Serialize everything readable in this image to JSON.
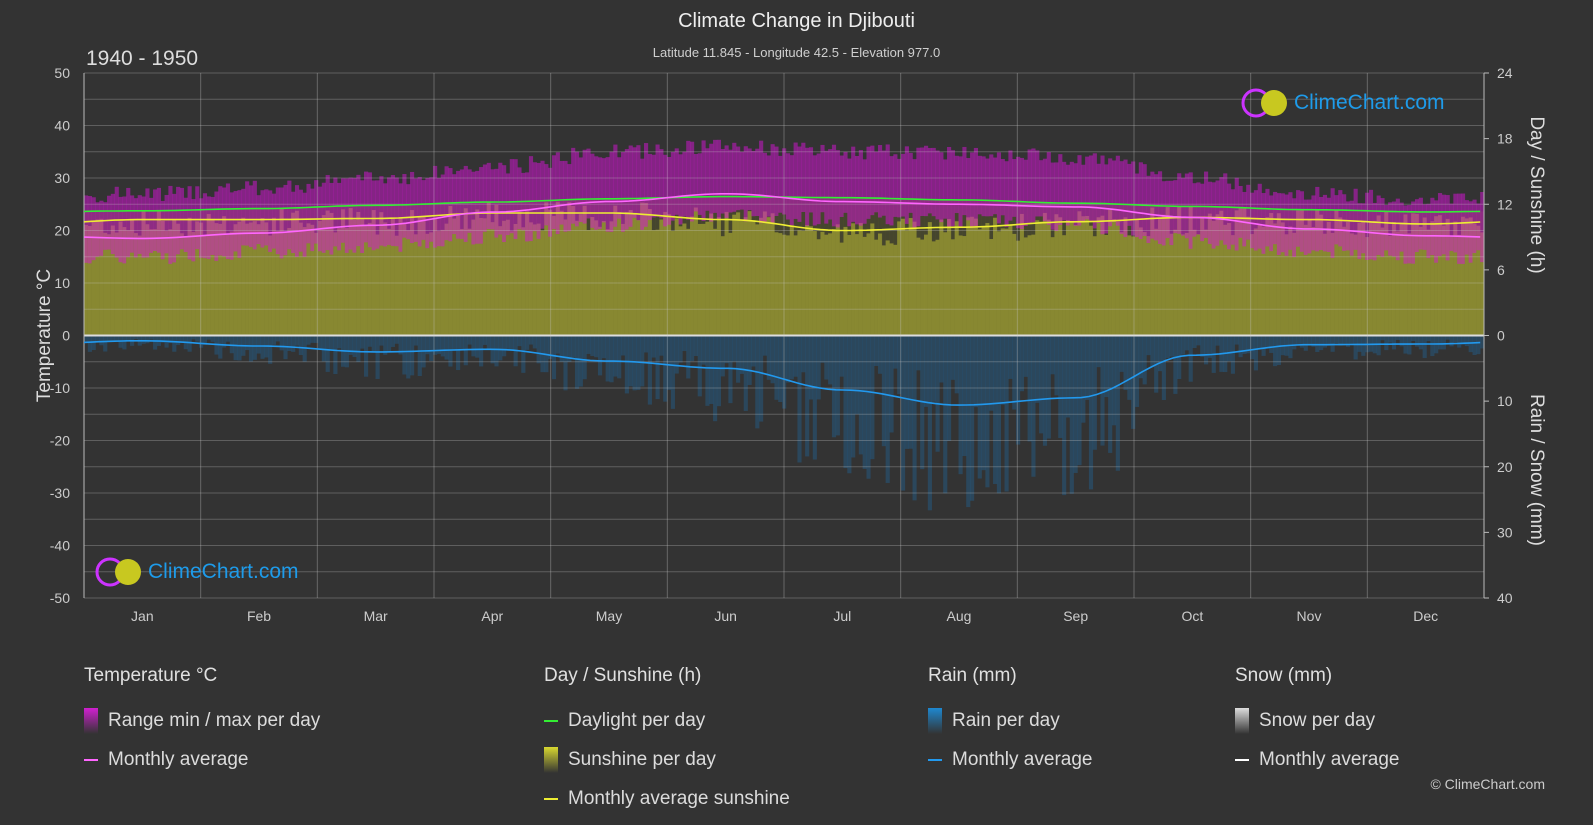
{
  "header": {
    "title": "Climate Change in Djibouti",
    "subtitle": "Latitude 11.845 - Longitude 42.5 - Elevation 977.0",
    "period": "1940 - 1950"
  },
  "logo_text": "ClimeChart.com",
  "copyright": "© ClimeChart.com",
  "chart_data": {
    "type": "area",
    "categories": [
      "Jan",
      "Feb",
      "Mar",
      "Apr",
      "May",
      "Jun",
      "Jul",
      "Aug",
      "Sep",
      "Oct",
      "Nov",
      "Dec"
    ],
    "left_axis": {
      "label": "Temperature °C",
      "range": [
        -50,
        50
      ],
      "ticks": [
        50,
        40,
        30,
        20,
        10,
        0,
        -10,
        -20,
        -30,
        -40,
        -50
      ]
    },
    "right_axis_top": {
      "label": "Day / Sunshine (h)",
      "range": [
        0,
        24
      ],
      "ticks": [
        24,
        18,
        12,
        6,
        0
      ]
    },
    "right_axis_bottom": {
      "label": "Rain / Snow (mm)",
      "range": [
        0,
        40
      ],
      "ticks": [
        0,
        10,
        20,
        30,
        40
      ]
    },
    "grid": true,
    "series": [
      {
        "name": "Monthly average",
        "group": "Temperature °C",
        "color": "#ff66ff",
        "values": [
          18.5,
          19.5,
          21.0,
          23.5,
          25.5,
          27.0,
          25.5,
          25.0,
          24.5,
          22.5,
          20.3,
          19.0
        ]
      },
      {
        "name": "Range max per day",
        "group": "Temperature °C",
        "color": "#c000c0",
        "values": [
          27,
          28,
          30,
          32,
          35,
          36,
          35,
          35,
          34,
          30,
          27,
          26
        ]
      },
      {
        "name": "Range min per day",
        "group": "Temperature °C",
        "color": "#c000c0",
        "values": [
          15,
          16,
          17,
          19,
          21,
          23,
          22,
          22,
          21,
          18,
          16,
          15
        ]
      },
      {
        "name": "Daylight per day",
        "group": "Day / Sunshine (h)",
        "color": "#33ee33",
        "values": [
          11.4,
          11.6,
          11.9,
          12.2,
          12.5,
          12.7,
          12.6,
          12.4,
          12.1,
          11.8,
          11.5,
          11.3
        ]
      },
      {
        "name": "Monthly average sunshine",
        "group": "Day / Sunshine (h)",
        "color": "#eeee33",
        "values": [
          10.6,
          10.6,
          10.7,
          11.2,
          11.2,
          10.6,
          9.6,
          9.9,
          10.4,
          10.8,
          10.6,
          10.2
        ]
      },
      {
        "name": "Monthly average",
        "group": "Rain (mm)",
        "color": "#2299ee",
        "values": [
          0.8,
          1.6,
          2.5,
          2.1,
          3.9,
          5.0,
          8.3,
          10.6,
          9.5,
          3.0,
          1.4,
          1.3
        ]
      },
      {
        "name": "Monthly average",
        "group": "Snow (mm)",
        "color": "#ffffff",
        "values": [
          0,
          0,
          0,
          0,
          0,
          0,
          0,
          0,
          0,
          0,
          0,
          0
        ]
      }
    ]
  },
  "legend": [
    {
      "heading": "Temperature °C",
      "items": [
        {
          "label": "Range min / max per day",
          "kind": "box",
          "color": "#d020d0"
        },
        {
          "label": "Monthly average",
          "kind": "line",
          "color": "#ff66ff"
        }
      ]
    },
    {
      "heading": "Day / Sunshine (h)",
      "items": [
        {
          "label": "Daylight per day",
          "kind": "line",
          "color": "#33ee33"
        },
        {
          "label": "Sunshine per day",
          "kind": "box",
          "color": "#d8d830"
        },
        {
          "label": "Monthly average sunshine",
          "kind": "line",
          "color": "#eeee33"
        }
      ]
    },
    {
      "heading": "Rain (mm)",
      "items": [
        {
          "label": "Rain per day",
          "kind": "box",
          "color": "#1e88d0"
        },
        {
          "label": "Monthly average",
          "kind": "line",
          "color": "#2299ee"
        }
      ]
    },
    {
      "heading": "Snow (mm)",
      "items": [
        {
          "label": "Snow per day",
          "kind": "box",
          "color": "#dddddd"
        },
        {
          "label": "Monthly average",
          "kind": "line",
          "color": "#ffffff"
        }
      ]
    }
  ]
}
